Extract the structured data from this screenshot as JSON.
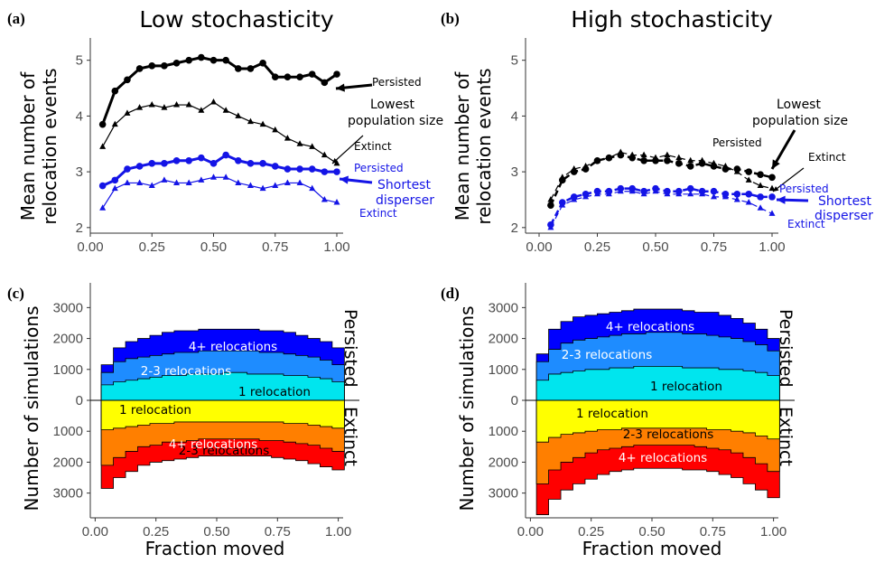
{
  "letters": [
    "(a)",
    "(b)",
    "(c)",
    "(d)"
  ],
  "colors": {
    "black": "#000000",
    "blue": "#1414e6",
    "red": "#ff0000",
    "orange": "#ff7f00",
    "yellow": "#ffff00",
    "cyan": "#00e5ee",
    "mid_blue": "#1e8cff",
    "dark_blue": "#0000ff"
  },
  "chart_data": [
    {
      "type": "line",
      "title": "Low stochasticity",
      "ylabel": "Mean number of relocation events",
      "xlabel": "",
      "x_ticks": [
        "0.00",
        "0.25",
        "0.50",
        "0.75",
        "1.00"
      ],
      "y_ticks": [
        "2",
        "3",
        "4",
        "5"
      ],
      "xlim": [
        0,
        1.05
      ],
      "ylim": [
        1.9,
        5.4
      ],
      "x": [
        0.05,
        0.1,
        0.15,
        0.2,
        0.25,
        0.3,
        0.35,
        0.4,
        0.45,
        0.5,
        0.55,
        0.6,
        0.65,
        0.7,
        0.75,
        0.8,
        0.85,
        0.9,
        0.95,
        1.0
      ],
      "series": [
        {
          "color": "#000000",
          "marker": "circle",
          "width": 3,
          "values": [
            3.85,
            4.45,
            4.65,
            4.85,
            4.9,
            4.9,
            4.95,
            5.0,
            5.05,
            5.0,
            5.0,
            4.85,
            4.85,
            4.95,
            4.7,
            4.7,
            4.7,
            4.75,
            4.6,
            4.75
          ]
        },
        {
          "color": "#000000",
          "marker": "triangle",
          "width": 1.2,
          "values": [
            3.45,
            3.85,
            4.05,
            4.15,
            4.2,
            4.15,
            4.2,
            4.2,
            4.1,
            4.25,
            4.1,
            4.0,
            3.9,
            3.85,
            3.75,
            3.6,
            3.5,
            3.45,
            3.3,
            3.15
          ]
        },
        {
          "color": "#1414e6",
          "marker": "circle",
          "width": 3,
          "values": [
            2.75,
            2.85,
            3.05,
            3.1,
            3.15,
            3.15,
            3.2,
            3.2,
            3.25,
            3.15,
            3.3,
            3.2,
            3.15,
            3.15,
            3.1,
            3.05,
            3.05,
            3.05,
            3.0,
            3.0
          ]
        },
        {
          "color": "#1414e6",
          "marker": "triangle",
          "width": 1.2,
          "values": [
            2.35,
            2.7,
            2.8,
            2.8,
            2.75,
            2.85,
            2.8,
            2.8,
            2.85,
            2.9,
            2.9,
            2.8,
            2.75,
            2.7,
            2.75,
            2.8,
            2.8,
            2.7,
            2.5,
            2.45
          ]
        }
      ],
      "annotations": [
        {
          "text": "Persisted",
          "color": "#000000",
          "size": 12
        },
        {
          "text": "Lowest",
          "color": "#000000",
          "size": 14
        },
        {
          "text": "population size",
          "color": "#000000",
          "size": 14
        },
        {
          "text": "Extinct",
          "color": "#000000",
          "size": 12
        },
        {
          "text": "Persisted",
          "color": "#1414e6",
          "size": 12
        },
        {
          "text": "Shortest",
          "color": "#1414e6",
          "size": 14
        },
        {
          "text": "disperser",
          "color": "#1414e6",
          "size": 14
        },
        {
          "text": "Extinct",
          "color": "#1414e6",
          "size": 12
        }
      ]
    },
    {
      "type": "line",
      "title": "High stochasticity",
      "ylabel": "Mean number of relocation events",
      "xlabel": "",
      "x_ticks": [
        "0.00",
        "0.25",
        "0.50",
        "0.75",
        "1.00"
      ],
      "y_ticks": [
        "2",
        "3",
        "4",
        "5"
      ],
      "xlim": [
        0,
        1.05
      ],
      "ylim": [
        1.9,
        5.4
      ],
      "x": [
        0.05,
        0.1,
        0.15,
        0.2,
        0.25,
        0.3,
        0.35,
        0.4,
        0.45,
        0.5,
        0.55,
        0.6,
        0.65,
        0.7,
        0.75,
        0.8,
        0.85,
        0.9,
        0.95,
        1.0
      ],
      "series": [
        {
          "color": "#000000",
          "marker": "circle",
          "width": 2.5,
          "dashed": true,
          "values": [
            2.4,
            2.85,
            3.0,
            3.05,
            3.2,
            3.25,
            3.3,
            3.25,
            3.2,
            3.2,
            3.2,
            3.15,
            3.1,
            3.15,
            3.1,
            3.05,
            3.05,
            3.0,
            2.95,
            2.9
          ]
        },
        {
          "color": "#000000",
          "marker": "triangle",
          "width": 1.2,
          "dashed": true,
          "values": [
            2.5,
            2.9,
            3.05,
            3.1,
            3.2,
            3.25,
            3.35,
            3.3,
            3.3,
            3.25,
            3.3,
            3.25,
            3.2,
            3.2,
            3.15,
            3.1,
            3.0,
            2.85,
            2.75,
            2.7
          ]
        },
        {
          "color": "#1414e6",
          "marker": "circle",
          "width": 2.5,
          "dashed": true,
          "values": [
            2.05,
            2.45,
            2.55,
            2.6,
            2.65,
            2.65,
            2.7,
            2.7,
            2.65,
            2.7,
            2.65,
            2.65,
            2.7,
            2.65,
            2.65,
            2.6,
            2.6,
            2.6,
            2.55,
            2.55
          ]
        },
        {
          "color": "#1414e6",
          "marker": "triangle",
          "width": 1.2,
          "dashed": true,
          "values": [
            2.0,
            2.4,
            2.5,
            2.55,
            2.6,
            2.6,
            2.65,
            2.65,
            2.6,
            2.65,
            2.6,
            2.6,
            2.6,
            2.6,
            2.55,
            2.55,
            2.5,
            2.45,
            2.35,
            2.25
          ]
        }
      ],
      "annotations": [
        {
          "text": "Lowest",
          "color": "#000000",
          "size": 14
        },
        {
          "text": "population size",
          "color": "#000000",
          "size": 14
        },
        {
          "text": "Persisted",
          "color": "#000000",
          "size": 12
        },
        {
          "text": "Extinct",
          "color": "#000000",
          "size": 12
        },
        {
          "text": "Persisted",
          "color": "#1414e6",
          "size": 12
        },
        {
          "text": "Shortest",
          "color": "#1414e6",
          "size": 14
        },
        {
          "text": "disperser",
          "color": "#1414e6",
          "size": 14
        },
        {
          "text": "Extinct",
          "color": "#1414e6",
          "size": 12
        }
      ]
    },
    {
      "type": "area",
      "title": "",
      "ylabel": "Number of simulations",
      "xlabel": "Fraction moved",
      "x_ticks": [
        "0.00",
        "0.25",
        "0.50",
        "0.75",
        "1.00"
      ],
      "y_ticks": [
        "3000",
        "2000",
        "1000",
        "0",
        "1000",
        "2000",
        "3000"
      ],
      "xlim": [
        -0.02,
        1.02
      ],
      "ylim": [
        -3800,
        3800
      ],
      "x": [
        0.05,
        0.1,
        0.15,
        0.2,
        0.25,
        0.3,
        0.35,
        0.4,
        0.45,
        0.5,
        0.55,
        0.6,
        0.65,
        0.7,
        0.75,
        0.8,
        0.85,
        0.9,
        0.95,
        1.0
      ],
      "persisted_cumulative": [
        {
          "label": "1 relocation",
          "color": "#00e5ee",
          "values": [
            500,
            600,
            650,
            700,
            750,
            800,
            800,
            850,
            850,
            850,
            900,
            900,
            850,
            850,
            850,
            800,
            800,
            750,
            700,
            600
          ]
        },
        {
          "label": "2-3 relocations",
          "color": "#1e8cff",
          "values": [
            900,
            1250,
            1350,
            1400,
            1450,
            1500,
            1550,
            1550,
            1600,
            1600,
            1600,
            1600,
            1600,
            1550,
            1550,
            1500,
            1450,
            1400,
            1300,
            1150
          ]
        },
        {
          "label": "4+ relocations",
          "color": "#0000ff",
          "values": [
            1150,
            1700,
            1900,
            2000,
            2100,
            2200,
            2250,
            2250,
            2300,
            2300,
            2300,
            2300,
            2300,
            2250,
            2250,
            2200,
            2100,
            2000,
            1900,
            1700
          ]
        }
      ],
      "extinct_cumulative": [
        {
          "label": "1 relocation",
          "color": "#ffff00",
          "values": [
            950,
            900,
            850,
            800,
            750,
            750,
            700,
            700,
            700,
            700,
            700,
            700,
            700,
            700,
            700,
            750,
            750,
            800,
            850,
            900
          ]
        },
        {
          "label": "2-3 relocations",
          "color": "#ff7f00",
          "values": [
            2100,
            1850,
            1650,
            1500,
            1450,
            1350,
            1350,
            1300,
            1250,
            1250,
            1250,
            1250,
            1250,
            1300,
            1300,
            1350,
            1400,
            1450,
            1550,
            1650
          ]
        },
        {
          "label": "4+ relocations",
          "color": "#ff0000",
          "values": [
            2850,
            2500,
            2300,
            2100,
            2000,
            1950,
            1900,
            1850,
            1800,
            1800,
            1800,
            1800,
            1800,
            1800,
            1850,
            1900,
            1950,
            2050,
            2150,
            2250
          ]
        }
      ],
      "side_labels": [
        "Persisted",
        "Extinct"
      ]
    },
    {
      "type": "area",
      "title": "",
      "ylabel": "Number of simulations",
      "xlabel": "Fraction moved",
      "x_ticks": [
        "0.00",
        "0.25",
        "0.50",
        "0.75",
        "1.00"
      ],
      "y_ticks": [
        "3000",
        "2000",
        "1000",
        "0",
        "1000",
        "2000",
        "3000"
      ],
      "xlim": [
        -0.02,
        1.02
      ],
      "ylim": [
        -3800,
        3800
      ],
      "x": [
        0.05,
        0.1,
        0.15,
        0.2,
        0.25,
        0.3,
        0.35,
        0.4,
        0.45,
        0.5,
        0.55,
        0.6,
        0.65,
        0.7,
        0.75,
        0.8,
        0.85,
        0.9,
        0.95,
        1.0
      ],
      "persisted_cumulative": [
        {
          "label": "1 relocation",
          "color": "#00e5ee",
          "values": [
            650,
            850,
            900,
            950,
            1000,
            1000,
            1050,
            1050,
            1100,
            1100,
            1100,
            1100,
            1050,
            1050,
            1050,
            1000,
            1000,
            950,
            900,
            800
          ]
        },
        {
          "label": "2-3 relocations",
          "color": "#1e8cff",
          "values": [
            1250,
            1650,
            1850,
            1950,
            2000,
            2050,
            2100,
            2150,
            2150,
            2200,
            2200,
            2200,
            2150,
            2150,
            2100,
            2050,
            2000,
            1900,
            1800,
            1600
          ]
        },
        {
          "label": "4+ relocations",
          "color": "#0000ff",
          "values": [
            1500,
            2300,
            2550,
            2700,
            2750,
            2800,
            2850,
            2900,
            2950,
            2950,
            2950,
            2950,
            2900,
            2850,
            2850,
            2750,
            2650,
            2500,
            2300,
            2000
          ]
        }
      ],
      "extinct_cumulative": [
        {
          "label": "1 relocation",
          "color": "#ffff00",
          "values": [
            1350,
            1200,
            1100,
            1050,
            1000,
            950,
            950,
            900,
            900,
            900,
            900,
            900,
            900,
            900,
            950,
            950,
            1000,
            1050,
            1150,
            1250
          ]
        },
        {
          "label": "2-3 relocations",
          "color": "#ff7f00",
          "values": [
            2700,
            2250,
            2000,
            1850,
            1700,
            1600,
            1550,
            1500,
            1450,
            1450,
            1450,
            1450,
            1450,
            1500,
            1550,
            1600,
            1700,
            1850,
            2050,
            2300
          ]
        },
        {
          "label": "4+ relocations",
          "color": "#ff0000",
          "values": [
            3700,
            3200,
            2900,
            2700,
            2550,
            2400,
            2300,
            2250,
            2200,
            2200,
            2200,
            2200,
            2250,
            2250,
            2300,
            2400,
            2500,
            2700,
            2900,
            3150
          ]
        }
      ],
      "side_labels": [
        "Persisted",
        "Extinct"
      ]
    }
  ]
}
